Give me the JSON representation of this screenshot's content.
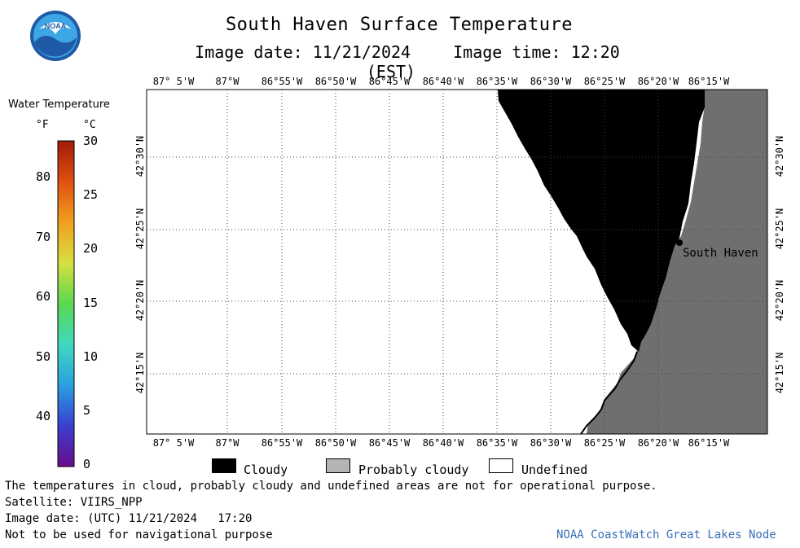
{
  "header": {
    "title": "South Haven Surface Temperature",
    "image_date": "Image date: 11/21/2024",
    "image_time": "Image time: 12:20 (EST)"
  },
  "logo": {
    "text": "NOAA",
    "icon": "noaa-logo-icon"
  },
  "temperature_legend": {
    "title": "Water Temperature",
    "unit_f": "°F",
    "unit_c": "°C",
    "fahrenheit_ticks": [
      "80",
      "70",
      "60",
      "50",
      "40"
    ],
    "celsius_ticks": [
      "30",
      "25",
      "20",
      "15",
      "10",
      "5",
      "0"
    ],
    "celsius_range": [
      0,
      30
    ],
    "colors": [
      "#6a0d8a",
      "#3a3fd0",
      "#2aa0e0",
      "#40d8c0",
      "#5ad850",
      "#d8e040",
      "#f0a020",
      "#e05010",
      "#a01a0a"
    ]
  },
  "map": {
    "lon_labels": [
      "87° 5'W",
      "87°W",
      "86°55'W",
      "86°50'W",
      "86°45'W",
      "86°40'W",
      "86°35'W",
      "86°30'W",
      "86°25'W",
      "86°20'W",
      "86°15'W"
    ],
    "lat_labels": [
      "42°30'N",
      "42°25'N",
      "42°20'N",
      "42°15'N"
    ],
    "city": "South Haven",
    "colors": {
      "cloudy": "#000000",
      "land": "#6f6f6f",
      "water_undefined": "#ffffff"
    }
  },
  "map_legend": {
    "items": [
      {
        "label": "Cloudy",
        "color": "#000000"
      },
      {
        "label": "Probably cloudy",
        "color": "#b4b4b4"
      },
      {
        "label": "Undefined",
        "color": "#ffffff"
      }
    ]
  },
  "footer": {
    "disclaimer": "The temperatures in cloud, probably cloudy and undefined areas are not for operational purpose.",
    "satellite": "Satellite: VIIRS_NPP",
    "utc_date": "Image date: (UTC) 11/21/2024   17:20",
    "nav_warning": "Not to be used for navigational purpose",
    "credit": "NOAA CoastWatch Great Lakes Node"
  }
}
